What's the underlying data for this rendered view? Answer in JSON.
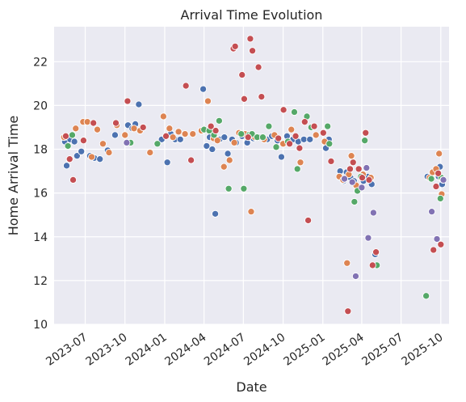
{
  "chart_data": {
    "type": "scatter",
    "title": "Arrival Time Evolution",
    "xlabel": "Date",
    "ylabel": "Home Arrival Time",
    "xlim": [
      "2023-04-20",
      "2025-10-20"
    ],
    "ylim": [
      10,
      23.6
    ],
    "grid": true,
    "legend": "none",
    "x_ticks": [
      "2023-07",
      "2023-10",
      "2024-01",
      "2024-04",
      "2024-07",
      "2024-10",
      "2025-01",
      "2025-04",
      "2025-07",
      "2025-10"
    ],
    "y_ticks": [
      10,
      12,
      14,
      16,
      18,
      20,
      22
    ],
    "colors": [
      "#4c72b0",
      "#dd8452",
      "#55a868",
      "#c44e52",
      "#8172b3"
    ],
    "series": [
      {
        "color": "#4c72b0",
        "points": [
          [
            "2023-05-15",
            18.35
          ],
          [
            "2023-05-19",
            17.25
          ],
          [
            "2023-05-27",
            18.45
          ],
          [
            "2023-06-06",
            18.35
          ],
          [
            "2023-06-12",
            17.7
          ],
          [
            "2023-06-22",
            17.9
          ],
          [
            "2023-07-12",
            17.7
          ],
          [
            "2023-07-22",
            17.6
          ],
          [
            "2023-08-04",
            17.55
          ],
          [
            "2023-08-22",
            17.95
          ],
          [
            "2023-09-08",
            18.65
          ],
          [
            "2023-10-08",
            19.1
          ],
          [
            "2023-10-18",
            18.95
          ],
          [
            "2023-10-25",
            19.15
          ],
          [
            "2023-11-02",
            20.05
          ],
          [
            "2023-12-25",
            18.45
          ],
          [
            "2024-01-07",
            17.4
          ],
          [
            "2024-01-15",
            18.7
          ],
          [
            "2024-01-25",
            18.45
          ],
          [
            "2024-02-06",
            18.45
          ],
          [
            "2024-03-30",
            20.75
          ],
          [
            "2024-04-07",
            18.15
          ],
          [
            "2024-04-14",
            18.55
          ],
          [
            "2024-04-20",
            18.0
          ],
          [
            "2024-04-27",
            15.05
          ],
          [
            "2024-05-07",
            18.45
          ],
          [
            "2024-05-18",
            18.55
          ],
          [
            "2024-05-26",
            17.8
          ],
          [
            "2024-06-05",
            18.45
          ],
          [
            "2024-06-14",
            18.3
          ],
          [
            "2024-06-28",
            18.6
          ],
          [
            "2024-07-10",
            18.3
          ],
          [
            "2024-07-24",
            18.5
          ],
          [
            "2024-08-08",
            18.55
          ],
          [
            "2024-08-25",
            18.45
          ],
          [
            "2024-09-05",
            18.6
          ],
          [
            "2024-09-18",
            18.4
          ],
          [
            "2024-09-27",
            17.65
          ],
          [
            "2024-10-10",
            18.6
          ],
          [
            "2024-10-24",
            18.45
          ],
          [
            "2024-11-05",
            18.35
          ],
          [
            "2024-11-18",
            18.45
          ],
          [
            "2024-12-02",
            18.45
          ],
          [
            "2025-01-08",
            18.05
          ],
          [
            "2025-01-15",
            18.45
          ],
          [
            "2025-02-10",
            17.0
          ],
          [
            "2025-02-18",
            16.55
          ],
          [
            "2025-02-25",
            16.95
          ],
          [
            "2025-03-06",
            16.7
          ],
          [
            "2025-03-14",
            16.55
          ],
          [
            "2025-03-28",
            16.2
          ],
          [
            "2025-04-05",
            16.55
          ],
          [
            "2025-04-15",
            16.75
          ],
          [
            "2025-04-24",
            16.4
          ],
          [
            "2025-05-02",
            13.2
          ],
          [
            "2025-08-31",
            16.75
          ],
          [
            "2025-09-15",
            16.95
          ],
          [
            "2025-09-26",
            16.75
          ],
          [
            "2025-09-29",
            17.2
          ],
          [
            "2025-10-04",
            16.4
          ]
        ]
      },
      {
        "color": "#dd8452",
        "points": [
          [
            "2023-05-13",
            18.55
          ],
          [
            "2023-06-09",
            18.95
          ],
          [
            "2023-06-26",
            19.25
          ],
          [
            "2023-07-06",
            19.25
          ],
          [
            "2023-07-16",
            17.65
          ],
          [
            "2023-07-29",
            18.9
          ],
          [
            "2023-08-11",
            18.25
          ],
          [
            "2023-08-25",
            17.85
          ],
          [
            "2023-09-12",
            19.1
          ],
          [
            "2023-10-01",
            18.65
          ],
          [
            "2023-10-22",
            18.95
          ],
          [
            "2023-11-05",
            18.85
          ],
          [
            "2023-11-28",
            17.85
          ],
          [
            "2023-12-29",
            19.5
          ],
          [
            "2024-01-12",
            18.95
          ],
          [
            "2024-01-20",
            18.55
          ],
          [
            "2024-02-02",
            18.8
          ],
          [
            "2024-02-17",
            18.7
          ],
          [
            "2024-03-06",
            18.7
          ],
          [
            "2024-03-26",
            18.85
          ],
          [
            "2024-04-10",
            20.2
          ],
          [
            "2024-04-23",
            18.5
          ],
          [
            "2024-05-02",
            18.4
          ],
          [
            "2024-05-17",
            17.2
          ],
          [
            "2024-05-30",
            17.5
          ],
          [
            "2024-06-10",
            18.3
          ],
          [
            "2024-06-21",
            18.75
          ],
          [
            "2024-07-05",
            18.7
          ],
          [
            "2024-07-19",
            15.15
          ],
          [
            "2024-07-28",
            18.55
          ],
          [
            "2024-08-18",
            18.45
          ],
          [
            "2024-09-11",
            18.65
          ],
          [
            "2024-10-01",
            18.25
          ],
          [
            "2024-10-20",
            18.9
          ],
          [
            "2024-11-10",
            17.4
          ],
          [
            "2024-12-16",
            18.65
          ],
          [
            "2025-01-05",
            18.35
          ],
          [
            "2025-02-08",
            16.75
          ],
          [
            "2025-02-17",
            16.6
          ],
          [
            "2025-02-26",
            12.8
          ],
          [
            "2025-03-02",
            16.85
          ],
          [
            "2025-03-08",
            17.7
          ],
          [
            "2025-03-19",
            16.35
          ],
          [
            "2025-04-04",
            16.85
          ],
          [
            "2025-04-22",
            16.7
          ],
          [
            "2025-09-05",
            16.7
          ],
          [
            "2025-09-12",
            16.95
          ],
          [
            "2025-09-20",
            17.1
          ],
          [
            "2025-09-27",
            17.8
          ],
          [
            "2025-10-03",
            15.95
          ]
        ]
      },
      {
        "color": "#55a868",
        "points": [
          [
            "2023-05-22",
            18.15
          ],
          [
            "2023-06-01",
            18.65
          ],
          [
            "2023-10-14",
            18.3
          ],
          [
            "2023-12-15",
            18.25
          ],
          [
            "2024-04-01",
            18.9
          ],
          [
            "2024-04-13",
            18.85
          ],
          [
            "2024-04-24",
            18.65
          ],
          [
            "2024-05-06",
            19.3
          ],
          [
            "2024-05-28",
            16.2
          ],
          [
            "2024-06-26",
            18.7
          ],
          [
            "2024-07-02",
            16.2
          ],
          [
            "2024-07-14",
            18.65
          ],
          [
            "2024-07-21",
            18.7
          ],
          [
            "2024-08-02",
            18.55
          ],
          [
            "2024-08-15",
            18.55
          ],
          [
            "2024-08-29",
            19.05
          ],
          [
            "2024-09-15",
            18.1
          ],
          [
            "2024-10-12",
            18.35
          ],
          [
            "2024-10-27",
            19.7
          ],
          [
            "2024-11-03",
            17.1
          ],
          [
            "2024-11-25",
            19.5
          ],
          [
            "2024-12-05",
            19.0
          ],
          [
            "2025-01-12",
            19.05
          ],
          [
            "2025-01-16",
            18.25
          ],
          [
            "2025-03-15",
            15.6
          ],
          [
            "2025-03-22",
            16.1
          ],
          [
            "2025-03-30",
            16.75
          ],
          [
            "2025-04-08",
            18.4
          ],
          [
            "2025-05-06",
            12.7
          ],
          [
            "2025-08-28",
            11.3
          ],
          [
            "2025-09-09",
            16.65
          ],
          [
            "2025-09-30",
            15.75
          ],
          [
            "2025-10-02",
            16.7
          ]
        ]
      },
      {
        "color": "#c44e52",
        "points": [
          [
            "2023-05-17",
            18.6
          ],
          [
            "2023-05-26",
            17.55
          ],
          [
            "2023-06-03",
            16.6
          ],
          [
            "2023-06-27",
            18.4
          ],
          [
            "2023-07-20",
            19.2
          ],
          [
            "2023-09-10",
            19.2
          ],
          [
            "2023-10-07",
            20.2
          ],
          [
            "2023-11-12",
            19.0
          ],
          [
            "2024-01-04",
            18.6
          ],
          [
            "2024-02-19",
            20.9
          ],
          [
            "2024-03-02",
            17.5
          ],
          [
            "2024-04-17",
            19.05
          ],
          [
            "2024-04-28",
            18.85
          ],
          [
            "2024-06-08",
            22.6
          ],
          [
            "2024-06-12",
            22.7
          ],
          [
            "2024-06-28",
            21.4
          ],
          [
            "2024-07-03",
            20.3
          ],
          [
            "2024-07-12",
            18.55
          ],
          [
            "2024-07-17",
            23.05
          ],
          [
            "2024-07-22",
            22.5
          ],
          [
            "2024-08-05",
            21.75
          ],
          [
            "2024-08-12",
            20.4
          ],
          [
            "2024-09-20",
            18.5
          ],
          [
            "2024-10-02",
            19.8
          ],
          [
            "2024-10-16",
            18.25
          ],
          [
            "2024-10-30",
            18.6
          ],
          [
            "2024-11-08",
            18.05
          ],
          [
            "2024-11-20",
            19.25
          ],
          [
            "2024-11-28",
            14.75
          ],
          [
            "2024-12-12",
            19.05
          ],
          [
            "2025-01-02",
            18.75
          ],
          [
            "2025-01-20",
            17.45
          ],
          [
            "2025-02-28",
            10.6
          ],
          [
            "2025-03-05",
            17.1
          ],
          [
            "2025-03-12",
            17.4
          ],
          [
            "2025-03-25",
            17.1
          ],
          [
            "2025-04-02",
            16.7
          ],
          [
            "2025-04-10",
            18.75
          ],
          [
            "2025-04-18",
            16.6
          ],
          [
            "2025-04-26",
            12.7
          ],
          [
            "2025-05-04",
            13.3
          ],
          [
            "2025-09-14",
            13.4
          ],
          [
            "2025-09-20",
            16.3
          ],
          [
            "2025-09-25",
            16.9
          ],
          [
            "2025-10-01",
            13.65
          ],
          [
            "2025-10-06",
            16.6
          ]
        ]
      },
      {
        "color": "#8172b3",
        "points": [
          [
            "2023-10-05",
            18.3
          ],
          [
            "2025-02-20",
            16.65
          ],
          [
            "2025-03-10",
            16.5
          ],
          [
            "2025-03-18",
            12.2
          ],
          [
            "2025-04-01",
            16.25
          ],
          [
            "2025-04-12",
            17.15
          ],
          [
            "2025-04-16",
            13.95
          ],
          [
            "2025-04-28",
            15.1
          ],
          [
            "2025-09-10",
            15.15
          ],
          [
            "2025-09-22",
            13.9
          ],
          [
            "2025-10-07",
            16.6
          ]
        ]
      }
    ]
  }
}
